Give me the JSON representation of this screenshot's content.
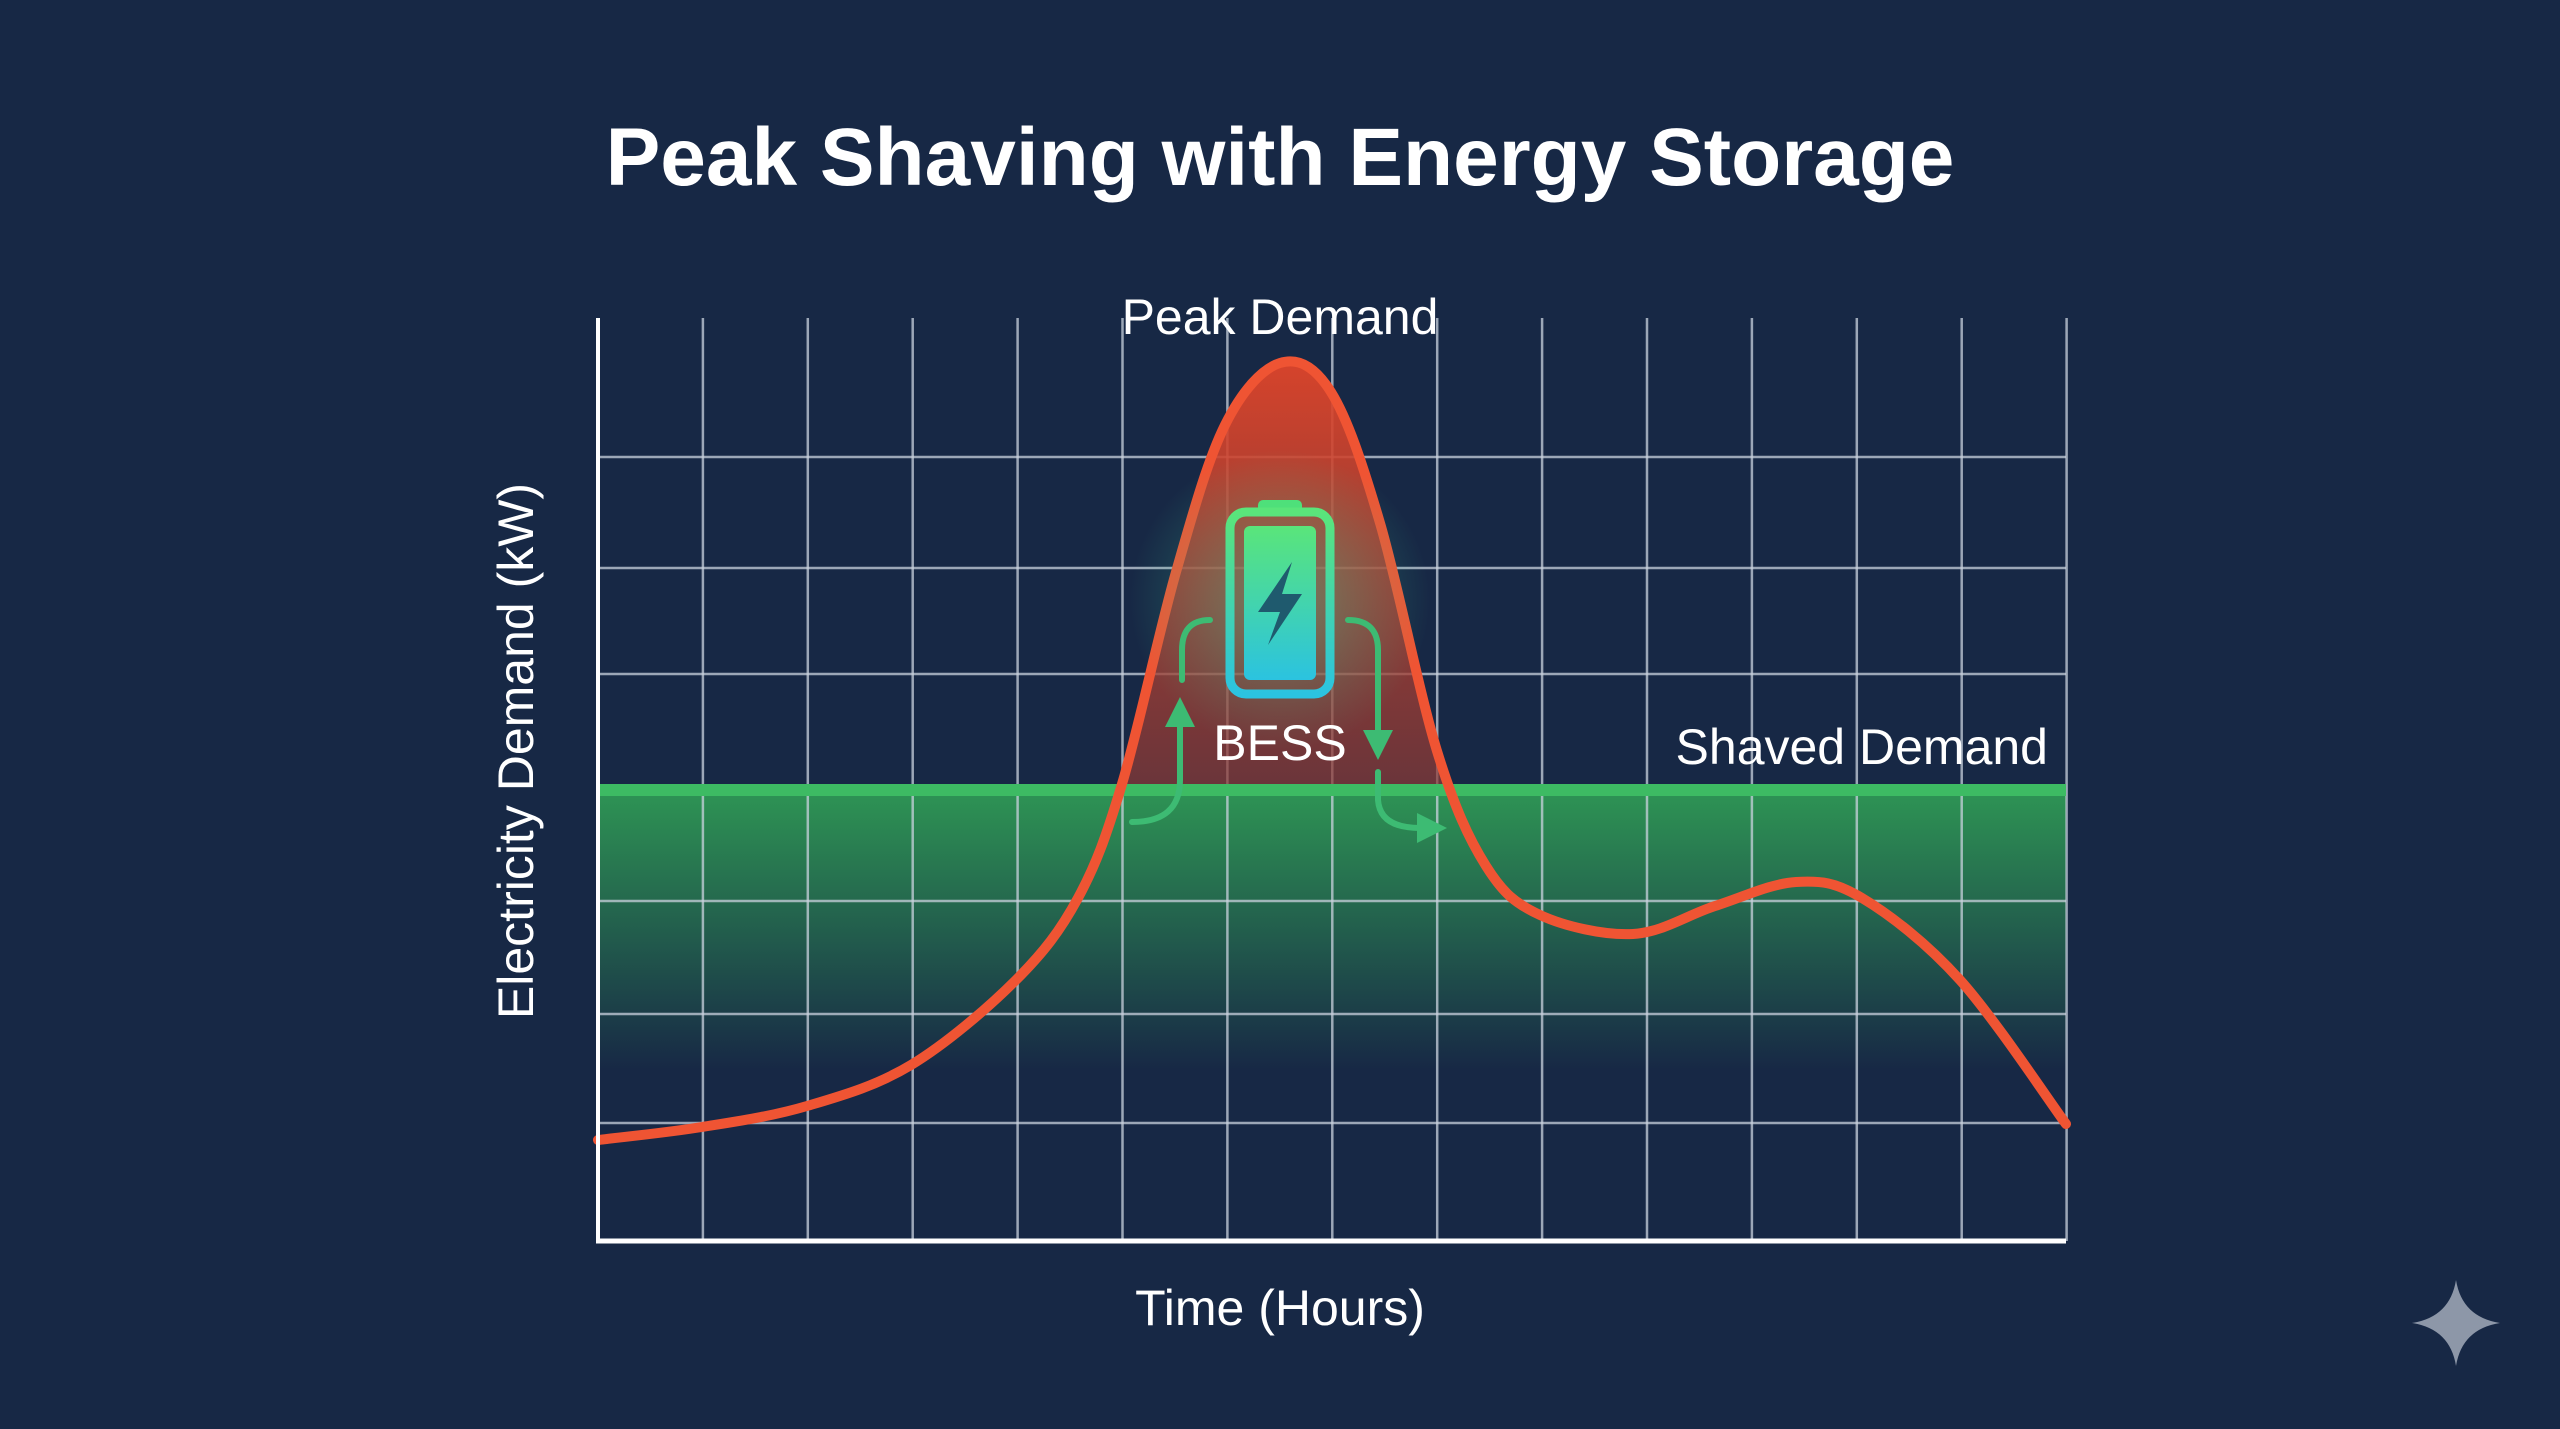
{
  "title": "Peak Shaving with Energy Storage",
  "annotations": {
    "peak": "Peak Demand",
    "shaved": "Shaved Demand",
    "bess": "BESS"
  },
  "axes": {
    "xlabel": "Time (Hours)",
    "ylabel": "Electricity Demand (kW)"
  },
  "colors": {
    "background": "#172845",
    "demand_curve": "#ef5433",
    "shaved_line": "#3dbb63",
    "grid": "#c9d2de",
    "battery": "#4ee07a",
    "battery_bottom": "#2bc3e0"
  },
  "icons": [
    "battery-charging-icon",
    "sparkle-icon"
  ]
}
